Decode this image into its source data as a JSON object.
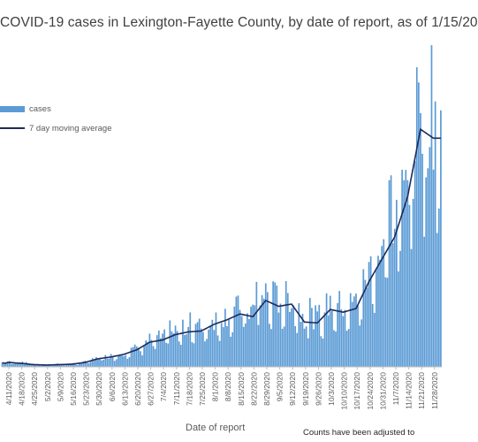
{
  "chart_data": {
    "type": "bar",
    "title": "COVID-19 cases in Lexington-Fayette County, by date of report, as of 1/15/20",
    "xlabel": "Date of report",
    "ylabel": "",
    "footnote": "Counts have been adjusted to",
    "legend_position": "left",
    "grid": false,
    "x_tick_labels": [
      "4/11/2020",
      "4/18/2020",
      "4/25/2020",
      "5/2/2020",
      "5/9/2020",
      "5/16/2020",
      "5/23/2020",
      "5/30/2020",
      "6/6/2020",
      "6/13/2020",
      "6/20/2020",
      "6/27/2020",
      "7/4/2020",
      "7/11/2020",
      "7/18/2020",
      "7/25/2020",
      "8/1/2020",
      "8/8/2020",
      "8/15/2020",
      "8/22/2020",
      "8/29/2020",
      "9/5/2020",
      "9/12/2020",
      "9/19/2020",
      "9/26/2020",
      "10/3/2020",
      "10/10/2020",
      "10/17/2020",
      "10/24/2020",
      "10/31/2020",
      "11/7/2020",
      "11/14/2020",
      "11/21/2020",
      "11/28/2020"
    ],
    "weekly_avg": [
      10,
      8,
      5,
      4,
      5,
      6,
      10,
      18,
      22,
      28,
      38,
      55,
      60,
      72,
      78,
      80,
      95,
      105,
      118,
      112,
      148,
      135,
      140,
      100,
      98,
      128,
      122,
      130,
      190,
      240,
      290,
      380,
      530,
      510
    ],
    "ylim": [
      0,
      700
    ],
    "series": [
      {
        "name": "cases",
        "color": "#5b9bd5"
      },
      {
        "name": "7 day moving average",
        "color": "#1f2a5a"
      }
    ]
  }
}
